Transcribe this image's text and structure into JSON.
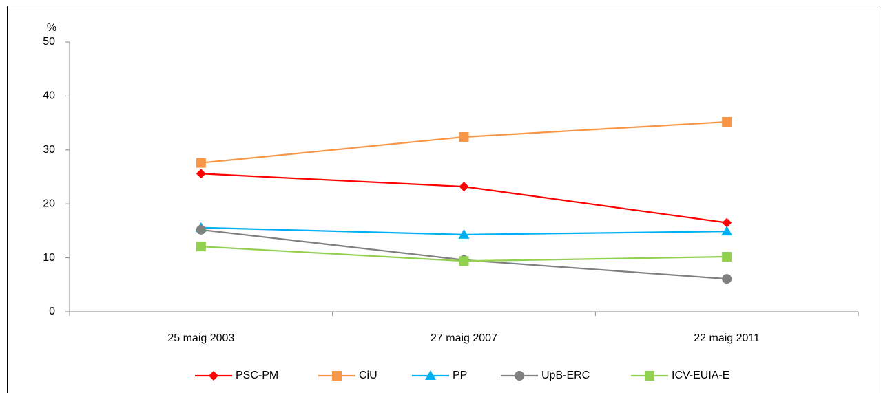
{
  "chart_data": {
    "type": "line",
    "y_label": "%",
    "categories": [
      "25 maig 2003",
      "27 maig 2007",
      "22 maig 2011"
    ],
    "series": [
      {
        "name": "PSC-PM",
        "color": "#ff0000",
        "marker": "diamond",
        "values": [
          25.6,
          23.2,
          16.5
        ]
      },
      {
        "name": "CiU",
        "color": "#f79646",
        "marker": "square",
        "values": [
          27.6,
          32.4,
          35.2
        ]
      },
      {
        "name": "PP",
        "color": "#00b0f0",
        "marker": "triangle",
        "values": [
          15.6,
          14.3,
          14.9
        ]
      },
      {
        "name": "UpB-ERC",
        "color": "#808080",
        "marker": "circle",
        "values": [
          15.2,
          9.6,
          6.1
        ]
      },
      {
        "name": "ICV-EUIA-E",
        "color": "#92d050",
        "marker": "square",
        "values": [
          12.1,
          9.4,
          10.2
        ]
      }
    ],
    "ylim": [
      0,
      50
    ],
    "yticks": [
      0,
      10,
      20,
      30,
      40,
      50
    ],
    "legend": "bottom"
  }
}
